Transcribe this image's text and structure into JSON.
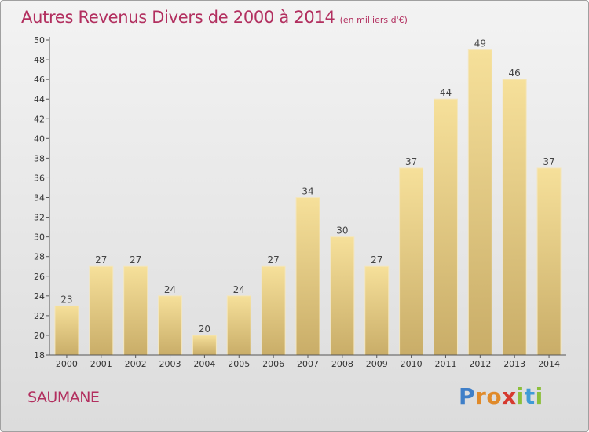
{
  "title": "Autres Revenus Divers de 2000 à 2014",
  "subtitle": "(en milliers d'€)",
  "location": "SAUMANE",
  "logo": {
    "letters": [
      "P",
      "r",
      "o",
      "x",
      "i",
      "t",
      "i"
    ],
    "colors": [
      "#3f7fc8",
      "#e08a2a",
      "#e08a2a",
      "#d63a2f",
      "#8cbf3a",
      "#3f9bd6",
      "#8cbf3a"
    ]
  },
  "chart_data": {
    "type": "bar",
    "categories": [
      "2000",
      "2001",
      "2002",
      "2003",
      "2004",
      "2005",
      "2006",
      "2007",
      "2008",
      "2009",
      "2010",
      "2011",
      "2012",
      "2013",
      "2014"
    ],
    "values": [
      23,
      27,
      27,
      24,
      20,
      24,
      27,
      34,
      30,
      27,
      37,
      44,
      49,
      46,
      37
    ],
    "ylim": [
      18,
      50
    ],
    "yticks": [
      18,
      20,
      22,
      24,
      26,
      28,
      30,
      32,
      34,
      36,
      38,
      40,
      42,
      44,
      46,
      48,
      50
    ],
    "grid": false,
    "bar_color": "#e9cf85"
  }
}
